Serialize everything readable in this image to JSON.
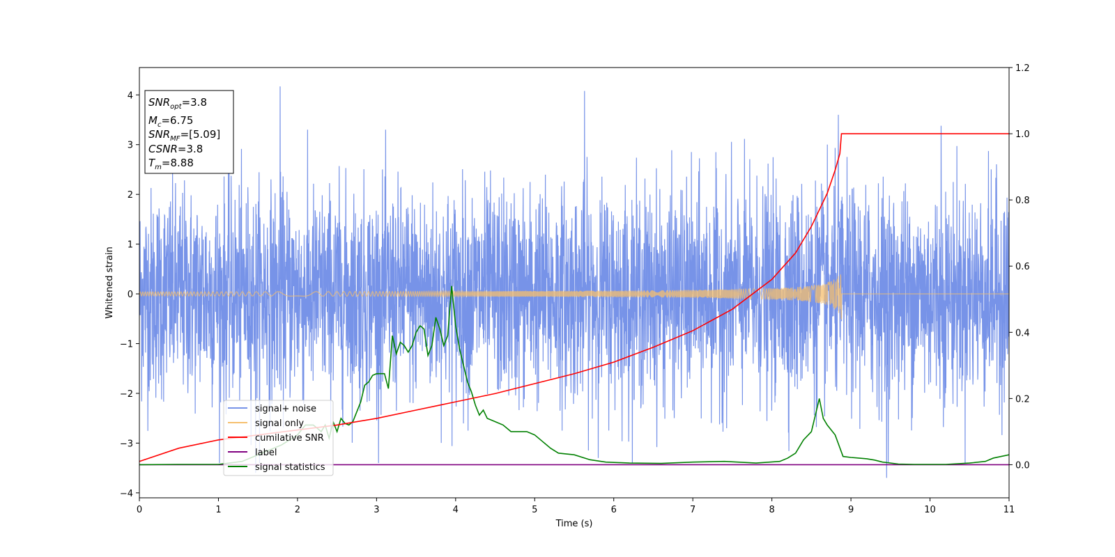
{
  "chart_data": {
    "type": "line",
    "title": "",
    "xlabel": "Time (s)",
    "ylabel": "Whitened strain",
    "xlim": [
      0,
      11
    ],
    "ylim": [
      -4.1,
      4.55
    ],
    "y2lim": [
      -0.1,
      1.2
    ],
    "grid": false,
    "legend_placement": "lower-left",
    "x_ticks": [
      0,
      1,
      2,
      3,
      4,
      5,
      6,
      7,
      8,
      9,
      10,
      11
    ],
    "y_ticks": [
      -4,
      -3,
      -2,
      -1,
      0,
      1,
      2,
      3,
      4
    ],
    "y_tick_labels": [
      "−4",
      "−3",
      "−2",
      "−1",
      "0",
      "1",
      "2",
      "3",
      "4"
    ],
    "y2_ticks": [
      0.0,
      0.2,
      0.4,
      0.6,
      0.8,
      1.0,
      1.2
    ],
    "y2_tick_labels": [
      "0.0",
      "0.2",
      "0.4",
      "0.6",
      "0.8",
      "1.0",
      "1.2"
    ],
    "annotation": {
      "snr_opt": {
        "base": "SNR",
        "sub": "opt",
        "value": "=3.8"
      },
      "mc": {
        "base": "M",
        "sub": "c",
        "value": "=6.75"
      },
      "snr_mf": {
        "base": "SNR",
        "sub": "MF",
        "value": "=[5.09]"
      },
      "csnr": {
        "base": "CSNR",
        "value": "=3.8"
      },
      "tm": {
        "base": "T",
        "sub": "m",
        "value": "=8.88"
      }
    },
    "series": [
      {
        "name": "signal+ noise",
        "axis": "left",
        "color": "#7793e8",
        "noise_std": 1.05,
        "duration": 11,
        "peaks": [
          [
            1.78,
            4.17
          ],
          [
            5.63,
            4.08
          ],
          [
            8.84,
            3.6
          ],
          [
            10.14,
            3.38
          ],
          [
            9.45,
            -3.7
          ],
          [
            1.47,
            -3.6
          ]
        ]
      },
      {
        "name": "signal only",
        "axis": "left",
        "color": "#f5bf6e",
        "merger_time": 8.88,
        "peak_amplitude": 0.5
      },
      {
        "name": "cumilative SNR",
        "axis": "right",
        "color": "#ff0000",
        "x": [
          0,
          0.5,
          1,
          1.5,
          2,
          2.5,
          3,
          3.5,
          4,
          4.5,
          5,
          5.5,
          6,
          6.5,
          7,
          7.5,
          8,
          8.3,
          8.5,
          8.7,
          8.8,
          8.86,
          8.88,
          9.5,
          11
        ],
        "y": [
          0.01,
          0.05,
          0.075,
          0.09,
          0.105,
          0.12,
          0.14,
          0.165,
          0.19,
          0.215,
          0.245,
          0.275,
          0.31,
          0.355,
          0.405,
          0.47,
          0.56,
          0.64,
          0.72,
          0.82,
          0.89,
          0.94,
          1.0,
          1.0,
          1.0
        ]
      },
      {
        "name": "label",
        "axis": "right",
        "color": "#800080",
        "x": [
          0,
          11
        ],
        "y": [
          0,
          0
        ]
      },
      {
        "name": "signal statistics",
        "axis": "right",
        "color": "#008000",
        "x": [
          0,
          0.5,
          1.0,
          1.3,
          1.6,
          1.8,
          2.0,
          2.1,
          2.2,
          2.3,
          2.35,
          2.4,
          2.45,
          2.5,
          2.55,
          2.6,
          2.65,
          2.7,
          2.75,
          2.8,
          2.85,
          2.9,
          2.95,
          3.0,
          3.05,
          3.1,
          3.15,
          3.2,
          3.25,
          3.3,
          3.35,
          3.4,
          3.45,
          3.5,
          3.55,
          3.6,
          3.65,
          3.7,
          3.75,
          3.8,
          3.85,
          3.9,
          3.95,
          4.0,
          4.05,
          4.1,
          4.15,
          4.2,
          4.25,
          4.3,
          4.35,
          4.4,
          4.5,
          4.6,
          4.7,
          4.8,
          4.9,
          5.0,
          5.1,
          5.2,
          5.3,
          5.5,
          5.7,
          5.9,
          6.2,
          6.6,
          7.0,
          7.4,
          7.8,
          8.1,
          8.2,
          8.3,
          8.4,
          8.5,
          8.55,
          8.6,
          8.65,
          8.7,
          8.8,
          8.9,
          9.0,
          9.1,
          9.2,
          9.3,
          9.4,
          9.6,
          9.8,
          10.2,
          10.5,
          10.7,
          10.8,
          10.9,
          11.0
        ],
        "y": [
          0.0,
          0.001,
          0.001,
          0.01,
          0.04,
          0.06,
          0.09,
          0.12,
          0.12,
          0.1,
          0.12,
          0.08,
          0.13,
          0.1,
          0.14,
          0.125,
          0.12,
          0.13,
          0.16,
          0.19,
          0.24,
          0.25,
          0.27,
          0.275,
          0.275,
          0.275,
          0.23,
          0.39,
          0.335,
          0.37,
          0.36,
          0.34,
          0.36,
          0.4,
          0.42,
          0.41,
          0.33,
          0.36,
          0.445,
          0.41,
          0.36,
          0.39,
          0.54,
          0.42,
          0.35,
          0.3,
          0.25,
          0.22,
          0.18,
          0.15,
          0.165,
          0.14,
          0.13,
          0.12,
          0.1,
          0.1,
          0.1,
          0.09,
          0.07,
          0.05,
          0.035,
          0.03,
          0.015,
          0.008,
          0.005,
          0.004,
          0.008,
          0.01,
          0.005,
          0.01,
          0.02,
          0.035,
          0.075,
          0.1,
          0.15,
          0.2,
          0.14,
          0.12,
          0.09,
          0.025,
          0.022,
          0.02,
          0.018,
          0.014,
          0.008,
          0.002,
          0.001,
          0.001,
          0.005,
          0.01,
          0.02,
          0.025,
          0.03
        ]
      }
    ]
  }
}
